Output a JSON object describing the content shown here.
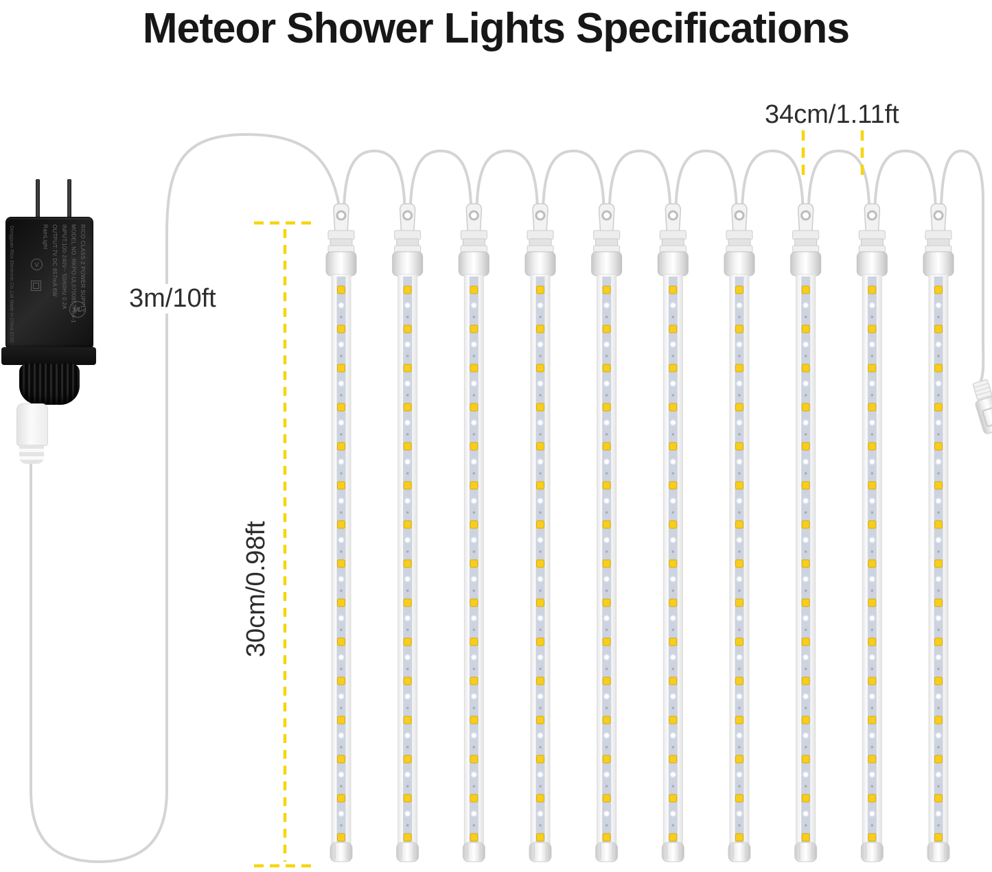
{
  "title": "Meteor Shower Lights Specifications",
  "measurements": {
    "lead_wire": "3m/10ft",
    "tube_spacing": "34cm/1.11ft",
    "tube_length": "30cm/0.98ft"
  },
  "adapter": {
    "print_lines": [
      "RICO CLASS 2 POWER SUPPLY",
      "MODEL NO.:RKPO-UL0700857PA4-1",
      "INPUT:100-240V~ 50/60Hz 0.2A",
      "OUTPUT:7V DC 857mA 6W",
      "RainLight"
    ],
    "side_print": "Dongguan Rico Electronic Co.,Ltd  Made in China 0720",
    "cert_v_mark": "V",
    "ul_mark": "UL"
  },
  "string": {
    "tube_count": 10,
    "leds_visible_per_tube": 15
  },
  "colors": {
    "dash_yellow": "#F5D60A",
    "led_yellow": "#F6CE1E",
    "led_border": "#DCA90F",
    "cable_gray": "#D4D4D4",
    "strip_gray": "#CDD4DF",
    "text_dark": "#2D2D2D",
    "title_black": "#171717"
  }
}
